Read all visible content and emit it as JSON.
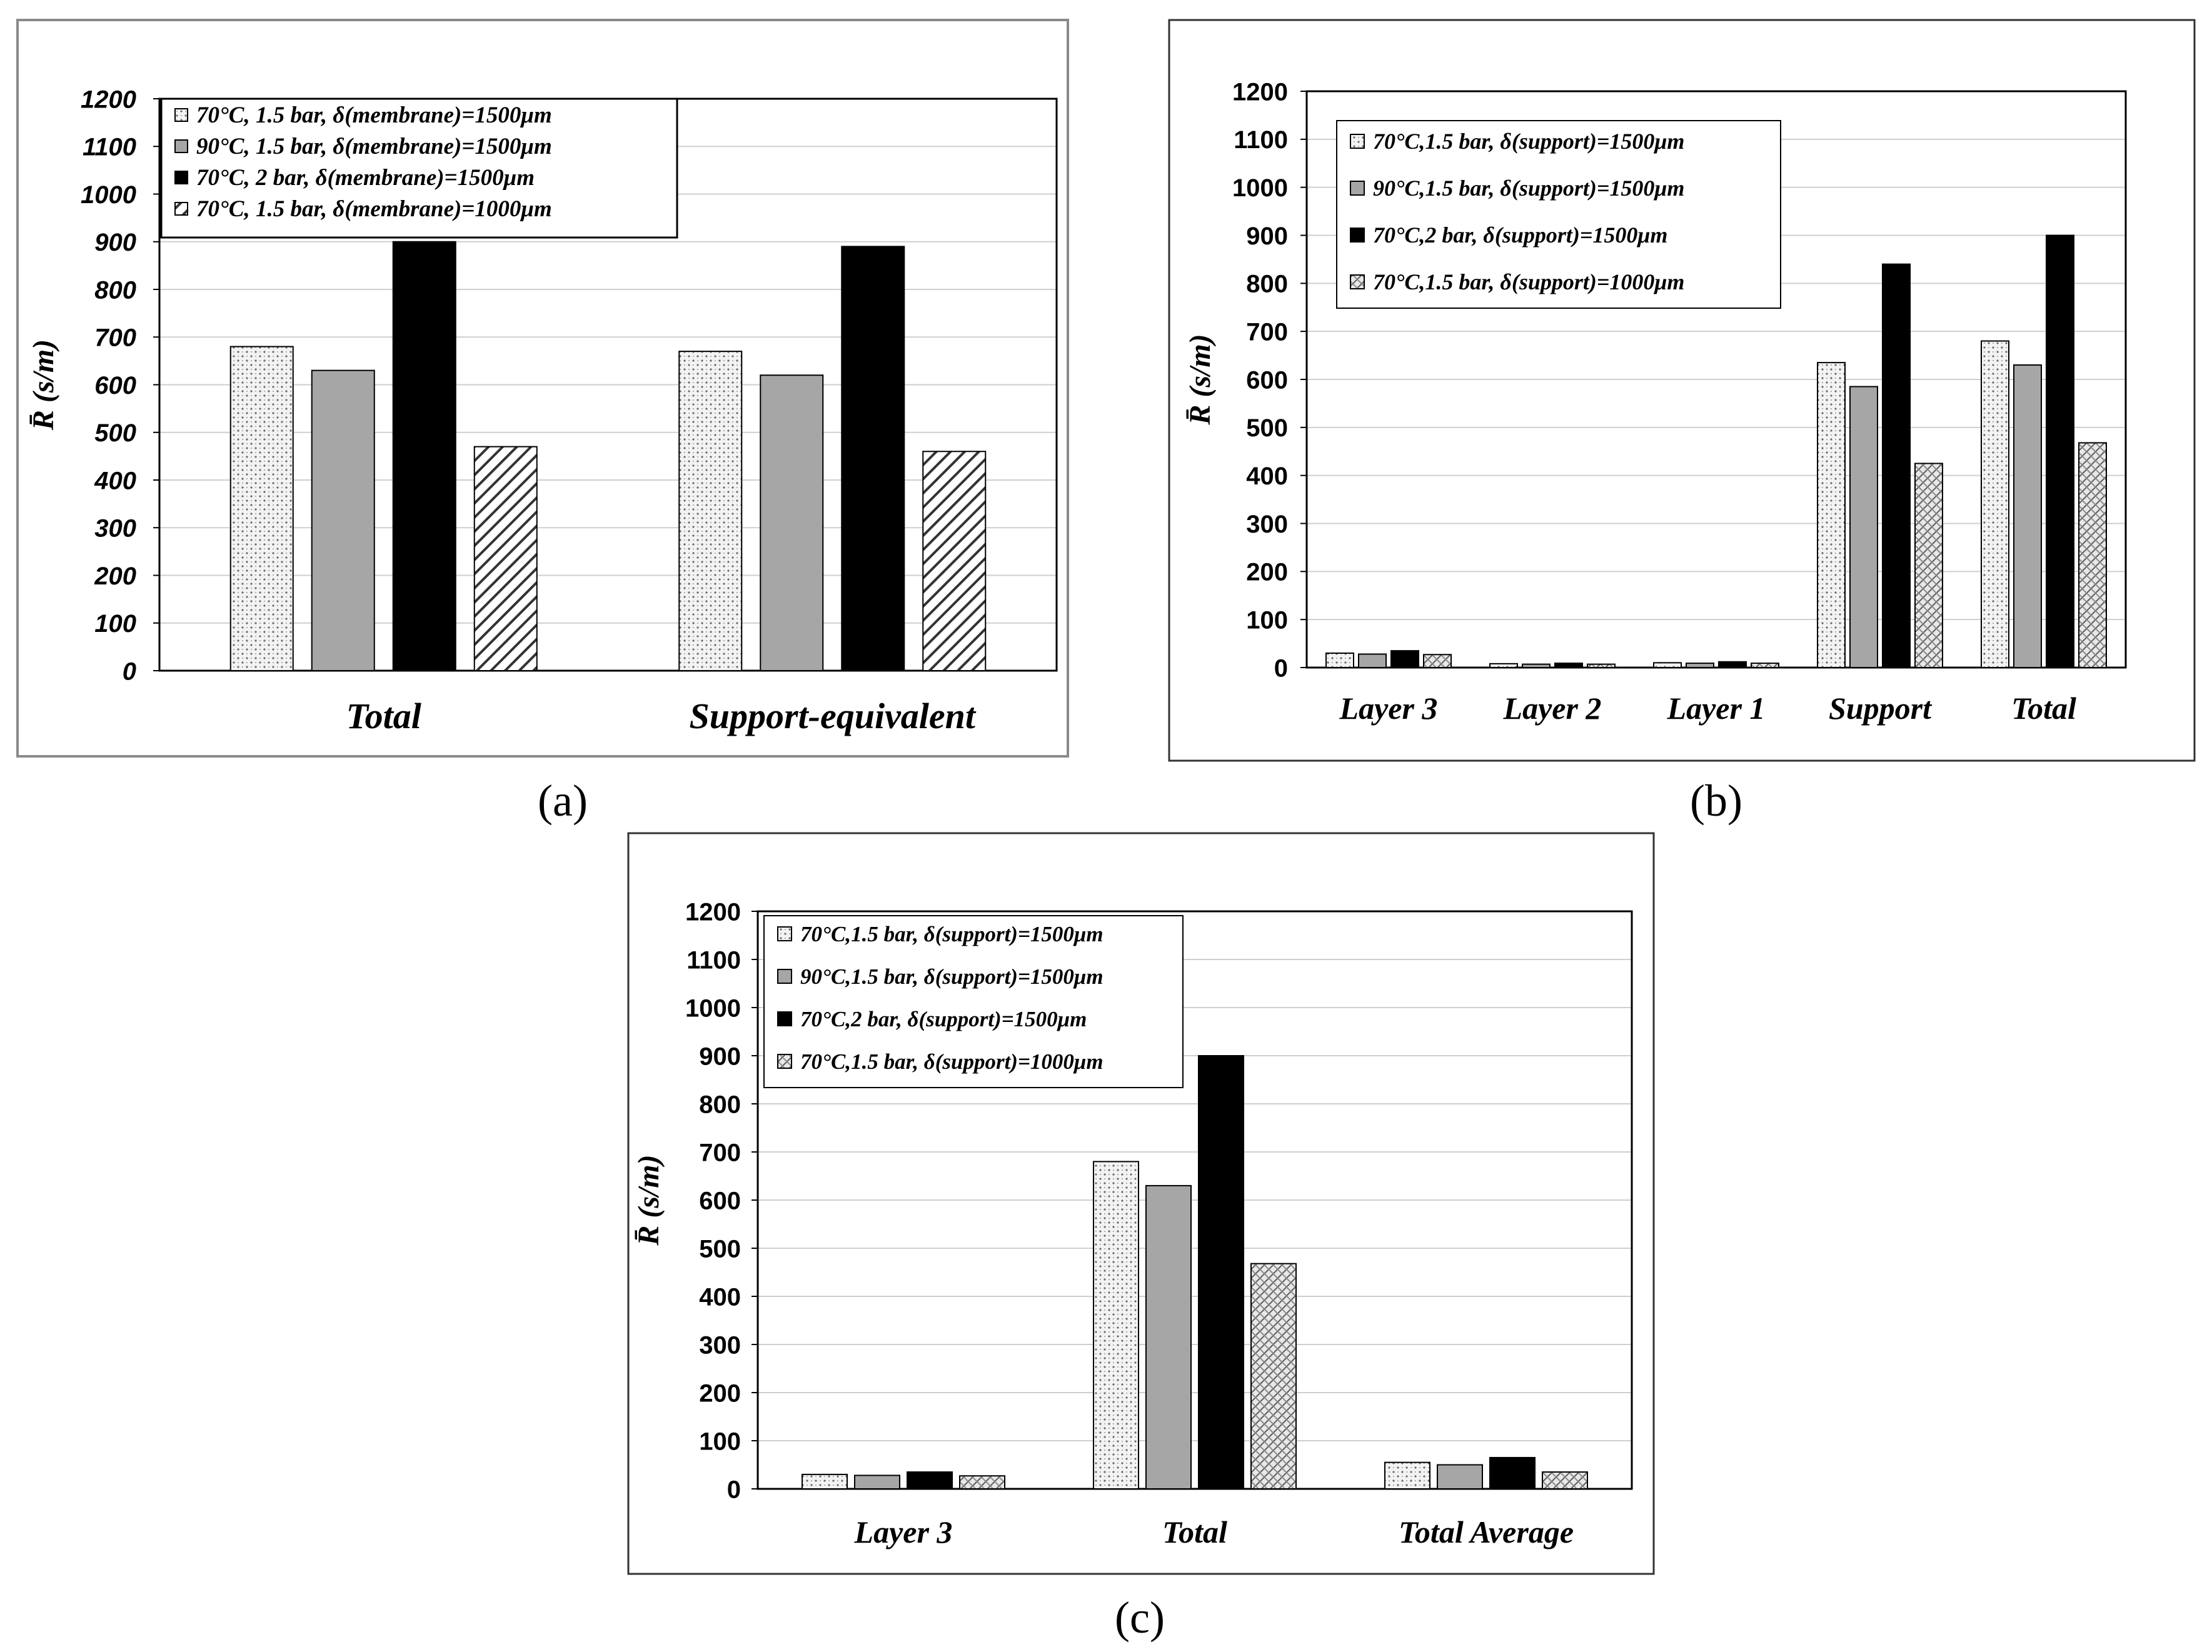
{
  "figure": {
    "panel_labels": [
      "(a)",
      "(b)",
      "(c)"
    ]
  },
  "colors": {
    "series1_fill": "#f3f3f3",
    "series2_fill": "#a6a6a6",
    "series3_fill": "#000000",
    "series4_fill": "#ffffff",
    "grid": "#cfcfcf",
    "frame": "#000000"
  },
  "chart_data": [
    {
      "panel": "(a)",
      "type": "bar",
      "categories": [
        "Total",
        "Support-equivalent"
      ],
      "series": [
        {
          "name": "70°C, 1.5 bar, δ(membrane)=1500μm",
          "values": [
            680,
            670
          ]
        },
        {
          "name": "90°C, 1.5 bar, δ(membrane)=1500μm",
          "values": [
            630,
            620
          ]
        },
        {
          "name": "70°C, 2 bar, δ(membrane)=1500μm",
          "values": [
            900,
            890
          ]
        },
        {
          "name": "70°C, 1.5 bar, δ(membrane)=1000μm",
          "values": [
            470,
            460
          ]
        }
      ],
      "ylabel": "R̄ (s/m)",
      "xlabel": "",
      "ylim": [
        0,
        1200
      ],
      "yticks": [
        "0",
        "100",
        "200",
        "300",
        "400",
        "500",
        "600",
        "700",
        "800",
        "900",
        "1000",
        "1100",
        "1200"
      ],
      "grid": true,
      "legend": "top-left"
    },
    {
      "panel": "(b)",
      "type": "bar",
      "categories": [
        "Layer 3",
        "Layer 2",
        "Layer 1",
        "Support",
        "Total"
      ],
      "series": [
        {
          "name": "70°C,1.5 bar, δ(support)=1500μm",
          "values": [
            30,
            8,
            10,
            635,
            680
          ]
        },
        {
          "name": "90°C,1.5 bar, δ(support)=1500μm",
          "values": [
            28,
            7,
            9,
            585,
            630
          ]
        },
        {
          "name": "70°C,2 bar, δ(support)=1500μm",
          "values": [
            35,
            9,
            12,
            840,
            900
          ]
        },
        {
          "name": "70°C,1.5 bar, δ(support)=1000μm",
          "values": [
            27,
            7,
            9,
            425,
            468
          ]
        }
      ],
      "ylabel": "R̄ (s/m)",
      "xlabel": "",
      "ylim": [
        0,
        1200
      ],
      "yticks": [
        "0",
        "100",
        "200",
        "300",
        "400",
        "500",
        "600",
        "700",
        "800",
        "900",
        "1000",
        "1100",
        "1200"
      ],
      "grid": true,
      "legend": "top-left"
    },
    {
      "panel": "(c)",
      "type": "bar",
      "categories": [
        "Layer 3",
        "Total",
        "Total Average"
      ],
      "series": [
        {
          "name": "70°C,1.5 bar, δ(support)=1500μm",
          "values": [
            30,
            680,
            55
          ]
        },
        {
          "name": "90°C,1.5 bar, δ(support)=1500μm",
          "values": [
            28,
            630,
            50
          ]
        },
        {
          "name": "70°C,2 bar, δ(support)=1500μm",
          "values": [
            35,
            900,
            65
          ]
        },
        {
          "name": "70°C,1.5 bar, δ(support)=1000μm",
          "values": [
            27,
            468,
            35
          ]
        }
      ],
      "ylabel": "R̄ (s/m)",
      "xlabel": "",
      "ylim": [
        0,
        1200
      ],
      "yticks": [
        "0",
        "100",
        "200",
        "300",
        "400",
        "500",
        "600",
        "700",
        "800",
        "900",
        "1000",
        "1100",
        "1200"
      ],
      "grid": true,
      "legend": "top-left"
    }
  ]
}
